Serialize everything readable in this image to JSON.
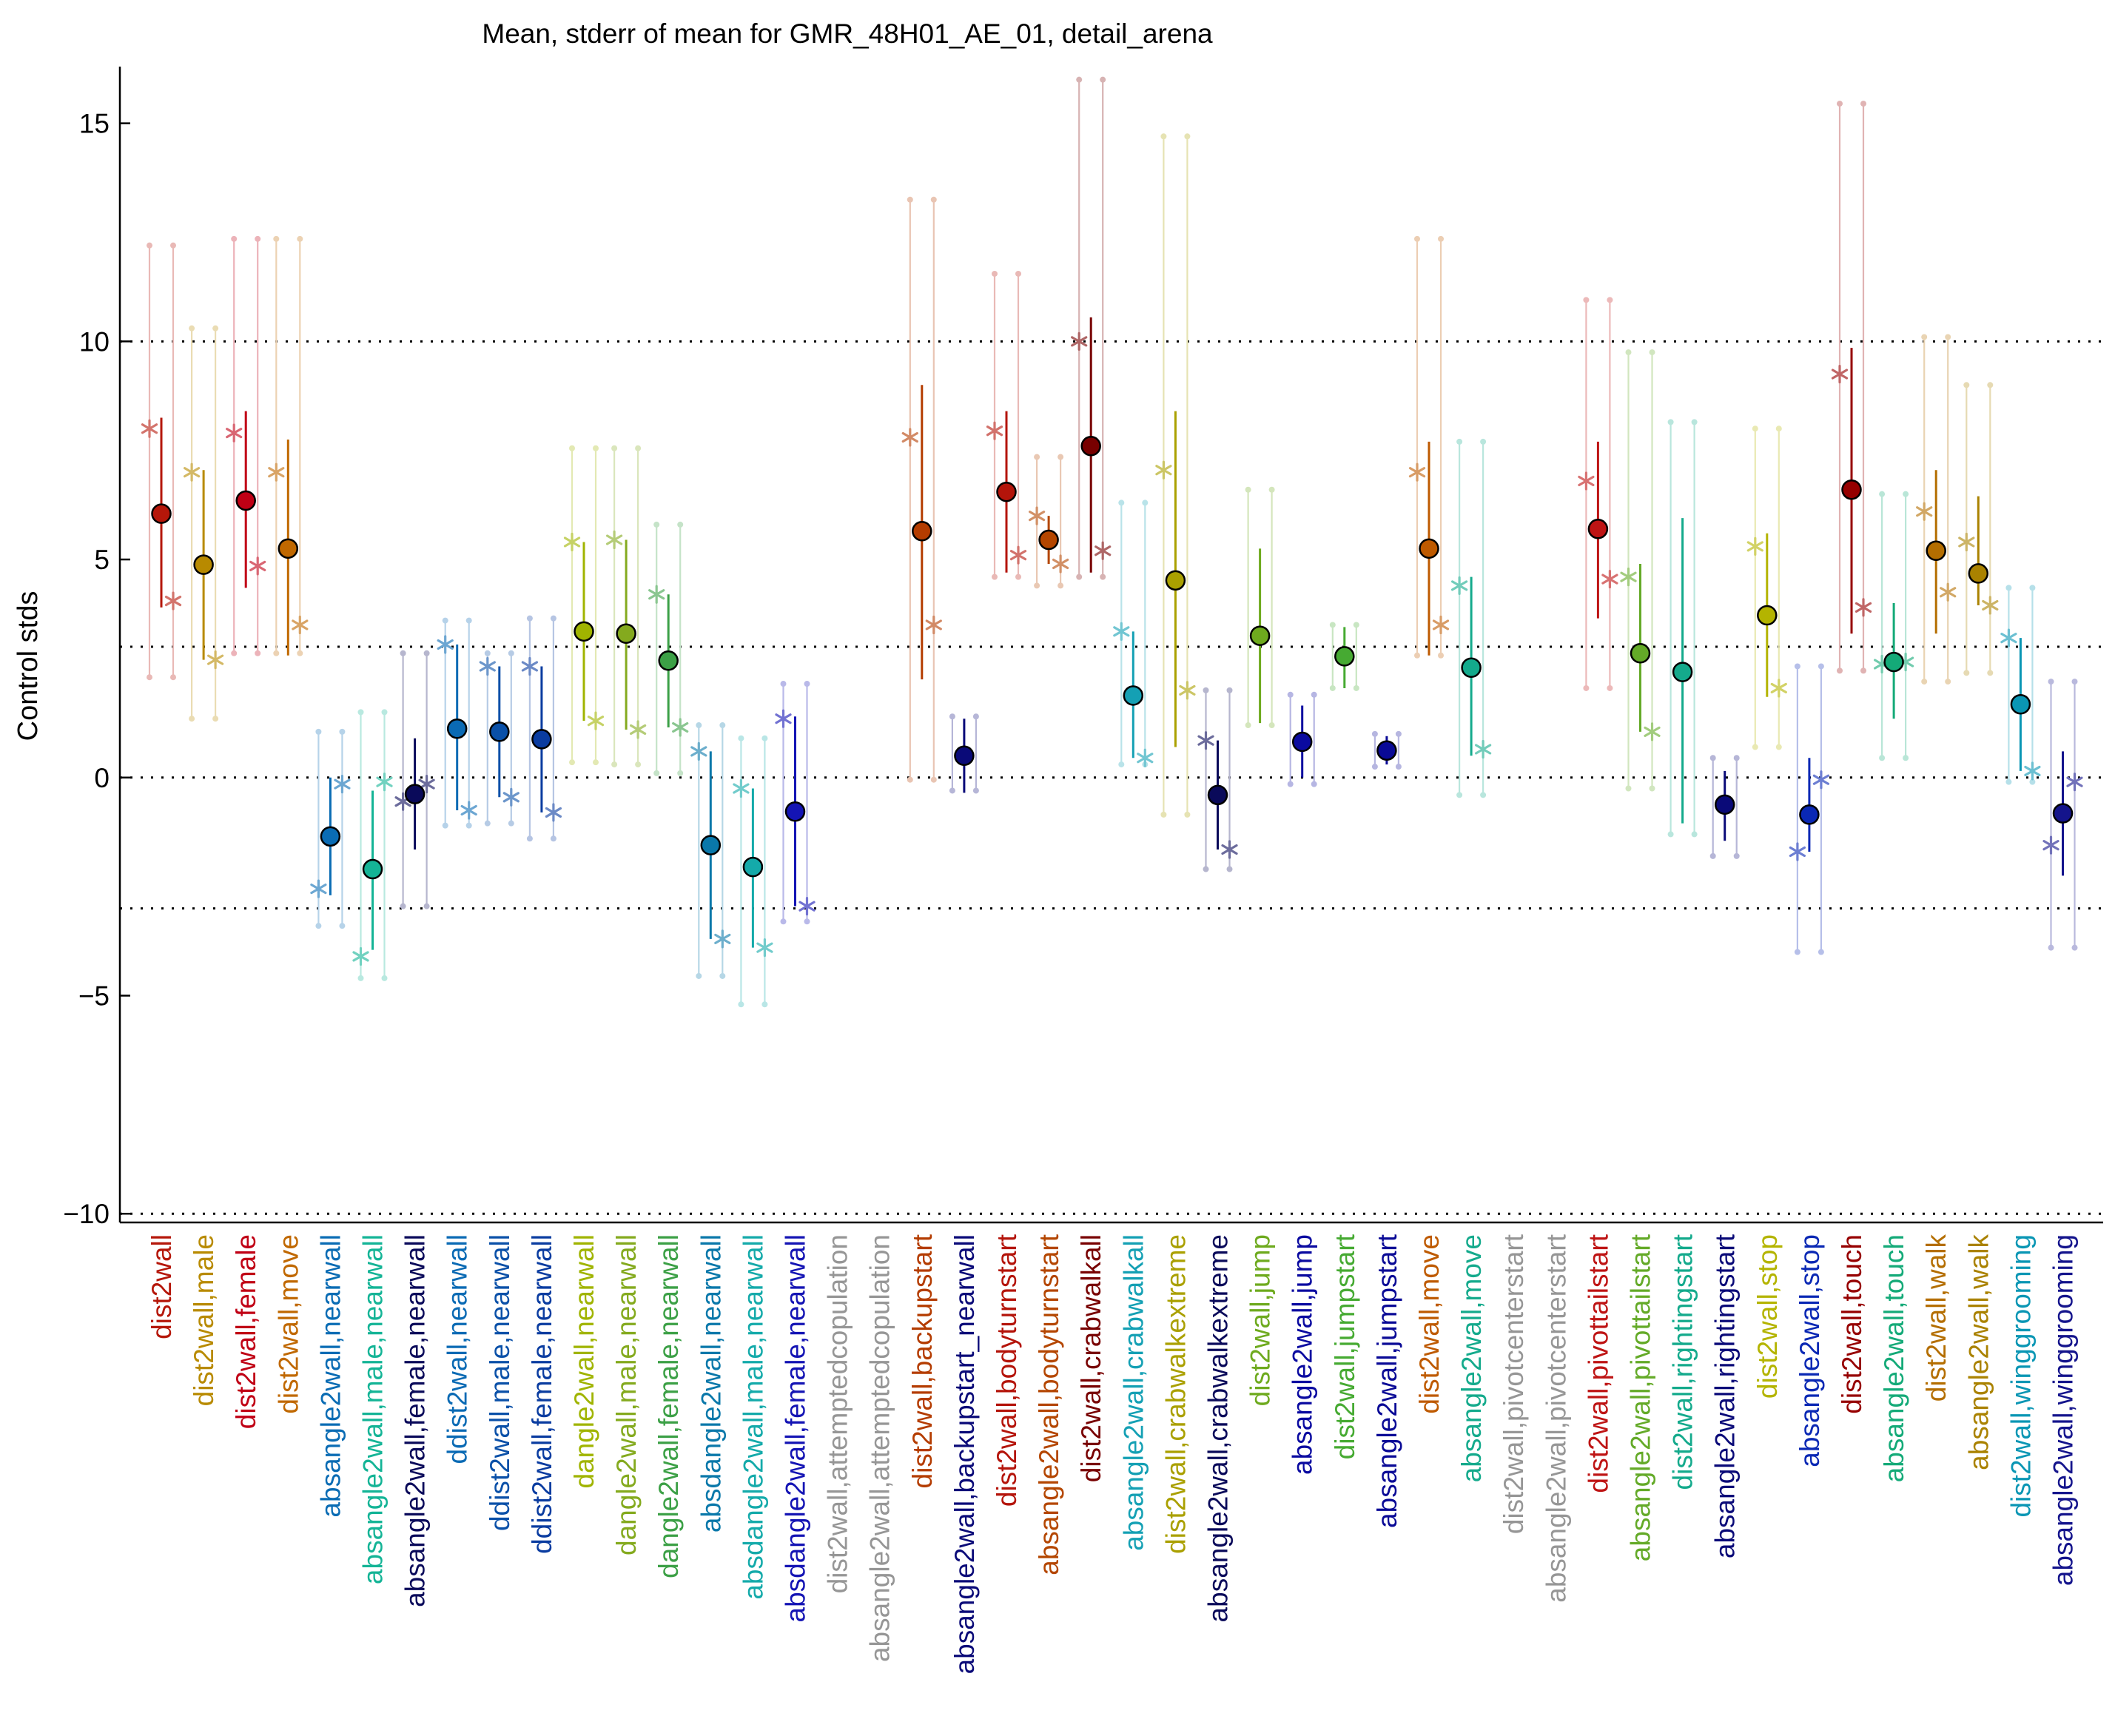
{
  "chart_data": {
    "type": "scatter",
    "title": "Mean, stderr of mean for GMR_48H01_AE_01, detail_arena",
    "xlabel": "",
    "ylabel": "Control stds",
    "ylim": [
      -10.2,
      16.3
    ],
    "yticks": [
      15,
      10,
      5,
      0,
      -5,
      -10
    ],
    "grid_lines": [
      10,
      3,
      0,
      -3,
      -10
    ],
    "categories": [
      {
        "label": "dist2wall",
        "color": "#b5170a",
        "mean": 6.05,
        "err_lo": 3.9,
        "err_hi": 8.25,
        "faint_lo": 2.3,
        "faint_hi": 12.2,
        "star_left": 8.0,
        "star_right": 4.05
      },
      {
        "label": "dist2wall,male",
        "color": "#b88a00",
        "mean": 4.88,
        "err_lo": 2.7,
        "err_hi": 7.05,
        "faint_lo": 1.35,
        "faint_hi": 10.3,
        "star_left": 7.0,
        "star_right": 2.7
      },
      {
        "label": "dist2wall,female",
        "color": "#c00015",
        "mean": 6.35,
        "err_lo": 4.35,
        "err_hi": 8.4,
        "faint_lo": 2.85,
        "faint_hi": 12.35,
        "star_left": 7.9,
        "star_right": 4.85
      },
      {
        "label": "dist2wall,move",
        "color": "#c06800",
        "mean": 5.25,
        "err_lo": 2.8,
        "err_hi": 7.75,
        "faint_lo": 2.85,
        "faint_hi": 12.35,
        "star_left": 7.0,
        "star_right": 3.5
      },
      {
        "label": "absangle2wall,nearwall",
        "color": "#0a6cb4",
        "mean": -1.35,
        "err_lo": -2.7,
        "err_hi": 0.0,
        "faint_lo": -3.4,
        "faint_hi": 1.05,
        "star_left": -2.55,
        "star_right": -0.15
      },
      {
        "label": "absangle2wall,male,nearwall",
        "color": "#14b496",
        "mean": -2.1,
        "err_lo": -3.95,
        "err_hi": -0.3,
        "faint_lo": -4.6,
        "faint_hi": 1.5,
        "star_left": -4.1,
        "star_right": -0.1
      },
      {
        "label": "absangle2wall,female,nearwall",
        "color": "#0a0a5a",
        "mean": -0.38,
        "err_lo": -1.65,
        "err_hi": 0.9,
        "faint_lo": -2.95,
        "faint_hi": 2.85,
        "star_left": -0.55,
        "star_right": -0.15
      },
      {
        "label": "ddist2wall,nearwall",
        "color": "#0a6ab4",
        "mean": 1.12,
        "err_lo": -0.75,
        "err_hi": 3.05,
        "faint_lo": -1.1,
        "faint_hi": 3.6,
        "star_left": 3.05,
        "star_right": -0.75
      },
      {
        "label": "ddist2wall,male,nearwall",
        "color": "#0a50a8",
        "mean": 1.05,
        "err_lo": -0.45,
        "err_hi": 2.55,
        "faint_lo": -1.05,
        "faint_hi": 2.85,
        "star_left": 2.55,
        "star_right": -0.45
      },
      {
        "label": "ddist2wall,female,nearwall",
        "color": "#0a3ca0",
        "mean": 0.88,
        "err_lo": -0.8,
        "err_hi": 2.55,
        "faint_lo": -1.4,
        "faint_hi": 3.65,
        "star_left": 2.55,
        "star_right": -0.8
      },
      {
        "label": "dangle2wall,nearwall",
        "color": "#a0b400",
        "mean": 3.35,
        "err_lo": 1.3,
        "err_hi": 5.4,
        "faint_lo": 0.35,
        "faint_hi": 7.55,
        "star_left": 5.4,
        "star_right": 1.3
      },
      {
        "label": "dangle2wall,male,nearwall",
        "color": "#84aa1e",
        "mean": 3.3,
        "err_lo": 1.1,
        "err_hi": 5.45,
        "faint_lo": 0.3,
        "faint_hi": 7.55,
        "star_left": 5.45,
        "star_right": 1.1
      },
      {
        "label": "dangle2wall,female,nearwall",
        "color": "#3ca046",
        "mean": 2.68,
        "err_lo": 1.15,
        "err_hi": 4.2,
        "faint_lo": 0.1,
        "faint_hi": 5.8,
        "star_left": 4.2,
        "star_right": 1.15
      },
      {
        "label": "absdangle2wall,nearwall",
        "color": "#0a78aa",
        "mean": -1.55,
        "err_lo": -3.7,
        "err_hi": 0.6,
        "faint_lo": -4.55,
        "faint_hi": 1.2,
        "star_left": 0.6,
        "star_right": -3.7
      },
      {
        "label": "absdangle2wall,male,nearwall",
        "color": "#14aaaa",
        "mean": -2.05,
        "err_lo": -3.9,
        "err_hi": -0.25,
        "faint_lo": -5.2,
        "faint_hi": 0.9,
        "star_left": -0.25,
        "star_right": -3.9
      },
      {
        "label": "absdangle2wall,female,nearwall",
        "color": "#1414b4",
        "mean": -0.78,
        "err_lo": -2.95,
        "err_hi": 1.4,
        "faint_lo": -3.3,
        "faint_hi": 2.15,
        "star_left": 1.35,
        "star_right": -2.95
      },
      {
        "label": "dist2wall,attemptedcopulation",
        "color": "#969696"
      },
      {
        "label": "absangle2wall,attemptedcopulation",
        "color": "#969696"
      },
      {
        "label": "dist2wall,backupstart",
        "color": "#b43c00",
        "mean": 5.65,
        "err_lo": 2.25,
        "err_hi": 9.0,
        "faint_lo": -0.05,
        "faint_hi": 13.25,
        "star_left": 7.8,
        "star_right": 3.5
      },
      {
        "label": "absangle2wall,backupstart_nearwall",
        "color": "#0a0a78",
        "mean": 0.5,
        "err_lo": -0.35,
        "err_hi": 1.35,
        "faint_lo": -0.3,
        "faint_hi": 1.4
      },
      {
        "label": "dist2wall,bodyturnstart",
        "color": "#b4140a",
        "mean": 6.55,
        "err_lo": 4.7,
        "err_hi": 8.4,
        "faint_lo": 4.6,
        "faint_hi": 11.55,
        "star_left": 7.95,
        "star_right": 5.1
      },
      {
        "label": "absangle2wall,bodyturnstart",
        "color": "#b44600",
        "mean": 5.45,
        "err_lo": 4.9,
        "err_hi": 6.0,
        "faint_lo": 4.4,
        "faint_hi": 7.35,
        "star_left": 6.0,
        "star_right": 4.9
      },
      {
        "label": "dist2wall,crabwalkall",
        "color": "#780000",
        "mean": 7.6,
        "err_lo": 4.7,
        "err_hi": 10.55,
        "faint_lo": 4.6,
        "faint_hi": 16.0,
        "star_left": 10.0,
        "star_right": 5.2
      },
      {
        "label": "absangle2wall,crabwalkall",
        "color": "#14a0b4",
        "mean": 1.88,
        "err_lo": 0.45,
        "err_hi": 3.35,
        "faint_lo": 0.3,
        "faint_hi": 6.3,
        "star_left": 3.35,
        "star_right": 0.45
      },
      {
        "label": "dist2wall,crabwalkextreme",
        "color": "#aaa000",
        "mean": 4.52,
        "err_lo": 0.7,
        "err_hi": 8.4,
        "faint_lo": -0.85,
        "faint_hi": 14.7,
        "star_left": 7.05,
        "star_right": 2.0
      },
      {
        "label": "absangle2wall,crabwalkextreme",
        "color": "#0a0a5a",
        "mean": -0.4,
        "err_lo": -1.65,
        "err_hi": 0.85,
        "faint_lo": -2.1,
        "faint_hi": 2.0,
        "star_left": 0.85,
        "star_right": -1.65
      },
      {
        "label": "dist2wall,jump",
        "color": "#6eaa1e",
        "mean": 3.25,
        "err_lo": 1.25,
        "err_hi": 5.25,
        "faint_lo": 1.2,
        "faint_hi": 6.6
      },
      {
        "label": "absangle2wall,jump",
        "color": "#0a0aa0",
        "mean": 0.82,
        "err_lo": 0.0,
        "err_hi": 1.65,
        "faint_lo": -0.15,
        "faint_hi": 1.9
      },
      {
        "label": "dist2wall,jumpstart",
        "color": "#46aa32",
        "mean": 2.78,
        "err_lo": 2.05,
        "err_hi": 3.45,
        "faint_lo": 2.05,
        "faint_hi": 3.5
      },
      {
        "label": "absangle2wall,jumpstart",
        "color": "#0a0a96",
        "mean": 0.62,
        "err_lo": 0.3,
        "err_hi": 0.95,
        "faint_lo": 0.25,
        "faint_hi": 1.0
      },
      {
        "label": "dist2wall,move",
        "color": "#be5a00",
        "mean": 5.25,
        "err_lo": 2.8,
        "err_hi": 7.7,
        "faint_lo": 2.8,
        "faint_hi": 12.35,
        "star_left": 7.0,
        "star_right": 3.5
      },
      {
        "label": "absangle2wall,move",
        "color": "#14aa8c",
        "mean": 2.52,
        "err_lo": 0.5,
        "err_hi": 4.6,
        "faint_lo": -0.4,
        "faint_hi": 7.7,
        "star_left": 4.4,
        "star_right": 0.65
      },
      {
        "label": "dist2wall,pivotcenterstart",
        "color": "#969696"
      },
      {
        "label": "absangle2wall,pivotcenterstart",
        "color": "#969696"
      },
      {
        "label": "dist2wall,pivottailstart",
        "color": "#be1414",
        "mean": 5.7,
        "err_lo": 3.65,
        "err_hi": 7.7,
        "faint_lo": 2.05,
        "faint_hi": 10.95,
        "star_left": 6.8,
        "star_right": 4.55
      },
      {
        "label": "absangle2wall,pivottailstart",
        "color": "#64aa28",
        "mean": 2.85,
        "err_lo": 1.05,
        "err_hi": 4.9,
        "faint_lo": -0.25,
        "faint_hi": 9.75,
        "star_left": 4.6,
        "star_right": 1.05
      },
      {
        "label": "dist2wall,rightingstart",
        "color": "#14aa8c",
        "mean": 2.42,
        "err_lo": -1.05,
        "err_hi": 5.95,
        "faint_lo": -1.3,
        "faint_hi": 8.15
      },
      {
        "label": "absangle2wall,rightingstart",
        "color": "#0a0a78",
        "mean": -0.62,
        "err_lo": -1.45,
        "err_hi": 0.15,
        "faint_lo": -1.8,
        "faint_hi": 0.45
      },
      {
        "label": "dist2wall,stop",
        "color": "#b4b400",
        "mean": 3.72,
        "err_lo": 1.85,
        "err_hi": 5.6,
        "faint_lo": 0.7,
        "faint_hi": 8.0,
        "star_left": 5.3,
        "star_right": 2.05
      },
      {
        "label": "absangle2wall,stop",
        "color": "#0a28b4",
        "mean": -0.85,
        "err_lo": -1.7,
        "err_hi": 0.45,
        "faint_lo": -4.0,
        "faint_hi": 2.55,
        "star_left": -1.7,
        "star_right": -0.05
      },
      {
        "label": "dist2wall,touch",
        "color": "#960000",
        "mean": 6.6,
        "err_lo": 3.3,
        "err_hi": 9.85,
        "faint_lo": 2.45,
        "faint_hi": 15.45,
        "star_left": 9.25,
        "star_right": 3.9
      },
      {
        "label": "absangle2wall,touch",
        "color": "#14aa78",
        "mean": 2.65,
        "err_lo": 1.35,
        "err_hi": 4.0,
        "faint_lo": 0.45,
        "faint_hi": 6.5,
        "star_left": 2.6,
        "star_right": 2.65
      },
      {
        "label": "dist2wall,walk",
        "color": "#b46e00",
        "mean": 5.2,
        "err_lo": 3.3,
        "err_hi": 7.05,
        "faint_lo": 2.2,
        "faint_hi": 10.1,
        "star_left": 6.1,
        "star_right": 4.25
      },
      {
        "label": "absangle2wall,walk",
        "color": "#aa8200",
        "mean": 4.68,
        "err_lo": 3.95,
        "err_hi": 6.45,
        "faint_lo": 2.4,
        "faint_hi": 9.0,
        "star_left": 5.4,
        "star_right": 3.95
      },
      {
        "label": "dist2wall,winggrooming",
        "color": "#0a96b4",
        "mean": 1.68,
        "err_lo": 0.15,
        "err_hi": 3.2,
        "faint_lo": -0.1,
        "faint_hi": 4.35,
        "star_left": 3.2,
        "star_right": 0.15
      },
      {
        "label": "absangle2wall,winggrooming",
        "color": "#14148c",
        "mean": -0.82,
        "err_lo": -2.25,
        "err_hi": 0.6,
        "faint_lo": -3.9,
        "faint_hi": 2.2,
        "star_left": -1.55,
        "star_right": -0.1
      }
    ]
  }
}
